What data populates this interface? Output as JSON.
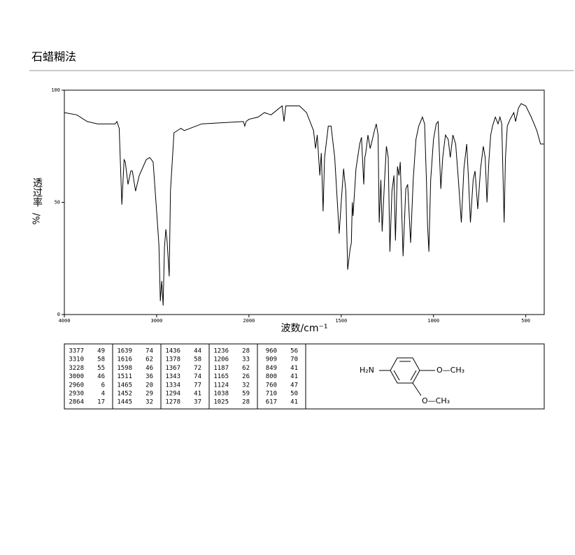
{
  "header": {
    "title": "石蜡糊法"
  },
  "chart_data": {
    "type": "line",
    "x_label": "波数/cm⁻¹",
    "y_label": "透过率",
    "y_unit": "%/",
    "color": "#000000",
    "xlim": [
      4000,
      400
    ],
    "ylim": [
      0,
      100
    ],
    "xticks": [
      4000,
      3000,
      2000,
      1500,
      1000,
      500
    ],
    "yticks": [
      0,
      50,
      100
    ],
    "x": [
      4000,
      3865,
      3752,
      3639,
      3450,
      3430,
      3406,
      3377,
      3353,
      3340,
      3310,
      3280,
      3263,
      3228,
      3188,
      3113,
      3075,
      3038,
      3000,
      2975,
      2960,
      2945,
      2930,
      2915,
      2900,
      2887,
      2875,
      2864,
      2850,
      2812,
      2737,
      2700,
      2511,
      2060,
      2045,
      2030,
      2000,
      1950,
      1916,
      1880,
      1820,
      1810,
      1800,
      1783,
      1726,
      1688,
      1650,
      1639,
      1630,
      1616,
      1608,
      1598,
      1590,
      1570,
      1555,
      1535,
      1511,
      1500,
      1487,
      1475,
      1465,
      1452,
      1445,
      1440,
      1436,
      1420,
      1400,
      1390,
      1378,
      1372,
      1367,
      1355,
      1343,
      1334,
      1320,
      1310,
      1300,
      1294,
      1285,
      1278,
      1265,
      1255,
      1245,
      1236,
      1225,
      1214,
      1206,
      1195,
      1187,
      1180,
      1165,
      1150,
      1140,
      1124,
      1110,
      1095,
      1080,
      1060,
      1048,
      1038,
      1032,
      1025,
      1015,
      1000,
      985,
      975,
      960,
      950,
      935,
      920,
      909,
      895,
      880,
      865,
      849,
      835,
      820,
      810,
      800,
      785,
      775,
      760,
      745,
      730,
      720,
      710,
      700,
      690,
      680,
      665,
      650,
      640,
      630,
      617,
      610,
      600,
      585,
      565,
      555,
      540,
      525,
      500,
      470,
      440,
      420,
      400
    ],
    "values": [
      90,
      89,
      86,
      85,
      85,
      86,
      83,
      49,
      69,
      68,
      58,
      64,
      64,
      55,
      62,
      69,
      70,
      68,
      46,
      31,
      6,
      15,
      4,
      30,
      38,
      33,
      25,
      17,
      55,
      81,
      83,
      82,
      85,
      86,
      84,
      86,
      87,
      88,
      90,
      89,
      93,
      86,
      93,
      93,
      93,
      90,
      82,
      74,
      80,
      62,
      72,
      46,
      70,
      84,
      84,
      70,
      36,
      50,
      65,
      55,
      20,
      29,
      32,
      50,
      44,
      65,
      76,
      79,
      58,
      70,
      72,
      80,
      74,
      77,
      82,
      85,
      80,
      41,
      60,
      37,
      60,
      75,
      70,
      28,
      55,
      62,
      33,
      66,
      62,
      68,
      26,
      56,
      58,
      32,
      60,
      78,
      84,
      88,
      85,
      59,
      40,
      28,
      60,
      78,
      85,
      86,
      56,
      70,
      80,
      78,
      70,
      80,
      76,
      60,
      41,
      65,
      76,
      60,
      41,
      60,
      64,
      47,
      65,
      75,
      70,
      50,
      68,
      80,
      84,
      88,
      85,
      88,
      85,
      41,
      70,
      84,
      87,
      90,
      86,
      92,
      94,
      93,
      88,
      82,
      76,
      76
    ]
  },
  "peak_table": {
    "columns": [
      [
        [
          3377,
          49
        ],
        [
          3310,
          58
        ],
        [
          3228,
          55
        ],
        [
          3000,
          46
        ],
        [
          2960,
          6
        ],
        [
          2930,
          4
        ],
        [
          2864,
          17
        ]
      ],
      [
        [
          1639,
          74
        ],
        [
          1616,
          62
        ],
        [
          1598,
          46
        ],
        [
          1511,
          36
        ],
        [
          1465,
          20
        ],
        [
          1452,
          29
        ],
        [
          1445,
          32
        ]
      ],
      [
        [
          1436,
          44
        ],
        [
          1378,
          58
        ],
        [
          1367,
          72
        ],
        [
          1343,
          74
        ],
        [
          1334,
          77
        ],
        [
          1294,
          41
        ],
        [
          1278,
          37
        ]
      ],
      [
        [
          1236,
          28
        ],
        [
          1206,
          33
        ],
        [
          1187,
          62
        ],
        [
          1165,
          26
        ],
        [
          1124,
          32
        ],
        [
          1038,
          59
        ],
        [
          1025,
          28
        ]
      ],
      [
        [
          960,
          56
        ],
        [
          909,
          70
        ],
        [
          849,
          41
        ],
        [
          800,
          41
        ],
        [
          760,
          47
        ],
        [
          710,
          50
        ],
        [
          617,
          41
        ]
      ]
    ]
  },
  "structure": {
    "amine": "H₂N",
    "methoxy_1": "O—CH₃",
    "methoxy_2": "O—CH₃"
  }
}
